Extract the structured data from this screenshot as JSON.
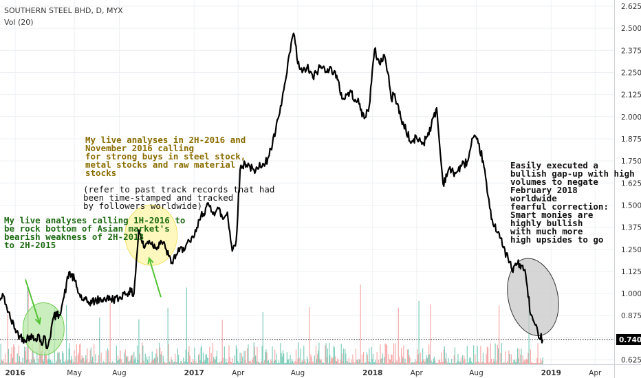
{
  "header": {
    "title": "SOUTHERN STEEL BHD, D, MYX",
    "volume_label": "Vol (20)"
  },
  "annotations": [
    {
      "name": "annotation-steel-buys",
      "style": "olive",
      "text": "My live analyses in 2H-2016 and\nNovember 2016 calling\nfor strong buys in steel stock,\nmetal stocks and raw material\nstocks"
    },
    {
      "name": "annotation-track-records",
      "style": "black",
      "text": "(refer to past track records that had\nbeen time-stamped and tracked\nby followers worldwide)"
    },
    {
      "name": "annotation-rock-bottom",
      "style": "green",
      "text": "My live analyses calling 1H-2016 to\nbe rock bottom of Asian market's\nbearish weakness of 2H-2013\nto 2H-2015"
    },
    {
      "name": "annotation-gap-up",
      "style": "black bold",
      "text": "Easily executed a\nbullish gap-up with high\nvolumes to negate\nFebruary 2018\nworldwide\nfearful correction:\nSmart monies are\nhighly bullish\nwith much more\nhigh upsides to go"
    }
  ],
  "chart_data": {
    "type": "line",
    "symbol": "SOUTHERN STEEL BHD",
    "interval": "D",
    "exchange": "MYX",
    "x_ticks": [
      "2016",
      "May",
      "Aug",
      "2017",
      "Apr",
      "Aug",
      "2018",
      "Apr",
      "Aug",
      "2019",
      "Apr"
    ],
    "x_tick_dates": [
      "2016-01-01",
      "2016-05-01",
      "2016-08-01",
      "2017-01-01",
      "2017-04-01",
      "2017-08-01",
      "2018-01-01",
      "2018-04-01",
      "2018-08-01",
      "2019-01-01",
      "2019-04-01"
    ],
    "y_ticks": [
      "0.625",
      "0.750",
      "0.875",
      "1.000",
      "1.125",
      "1.250",
      "1.375",
      "1.500",
      "1.625",
      "1.750",
      "1.875",
      "2.000",
      "2.125",
      "2.250",
      "2.375",
      "2.500",
      "2.625"
    ],
    "ylim": [
      0.6,
      2.66
    ],
    "last_price": "0.740",
    "colors": {
      "price": "#000000",
      "vol_up": "#7fcdbb",
      "vol_down": "#f5a9a9",
      "last_price_bg": "#000000"
    },
    "series": [
      {
        "values_type": "close",
        "points": [
          [
            "2015-12-01",
            0.96
          ],
          [
            "2015-12-08",
            0.99
          ],
          [
            "2015-12-15",
            0.92
          ],
          [
            "2015-12-22",
            0.86
          ],
          [
            "2016-01-01",
            0.8
          ],
          [
            "2016-01-10",
            0.76
          ],
          [
            "2016-01-20",
            0.74
          ],
          [
            "2016-01-31",
            0.76
          ],
          [
            "2016-02-10",
            0.74
          ],
          [
            "2016-02-18",
            0.77
          ],
          [
            "2016-02-24",
            0.71
          ],
          [
            "2016-03-01",
            0.76
          ],
          [
            "2016-03-05",
            0.69
          ],
          [
            "2016-03-10",
            0.73
          ],
          [
            "2016-03-20",
            0.87
          ],
          [
            "2016-03-31",
            0.88
          ],
          [
            "2016-04-10",
            0.98
          ],
          [
            "2016-04-20",
            1.12
          ],
          [
            "2016-05-01",
            1.08
          ],
          [
            "2016-05-10",
            1.0
          ],
          [
            "2016-05-20",
            0.96
          ],
          [
            "2016-06-01",
            0.95
          ],
          [
            "2016-06-15",
            0.96
          ],
          [
            "2016-06-30",
            0.97
          ],
          [
            "2016-07-15",
            0.97
          ],
          [
            "2016-07-31",
            0.97
          ],
          [
            "2016-08-10",
            1.0
          ],
          [
            "2016-08-20",
            1.01
          ],
          [
            "2016-08-31",
            1.0
          ],
          [
            "2016-09-05",
            1.19
          ],
          [
            "2016-09-10",
            1.36
          ],
          [
            "2016-09-20",
            1.26
          ],
          [
            "2016-10-01",
            1.3
          ],
          [
            "2016-10-15",
            1.26
          ],
          [
            "2016-10-25",
            1.3
          ],
          [
            "2016-11-05",
            1.25
          ],
          [
            "2016-11-15",
            1.17
          ],
          [
            "2016-11-25",
            1.22
          ],
          [
            "2016-12-10",
            1.26
          ],
          [
            "2016-12-25",
            1.29
          ],
          [
            "2017-01-05",
            1.35
          ],
          [
            "2017-01-15",
            1.44
          ],
          [
            "2017-01-31",
            1.5
          ],
          [
            "2017-02-10",
            1.46
          ],
          [
            "2017-02-20",
            1.48
          ],
          [
            "2017-03-01",
            1.42
          ],
          [
            "2017-03-10",
            1.46
          ],
          [
            "2017-03-20",
            1.24
          ],
          [
            "2017-03-28",
            1.3
          ],
          [
            "2017-04-05",
            1.7
          ],
          [
            "2017-04-15",
            1.74
          ],
          [
            "2017-04-25",
            1.72
          ],
          [
            "2017-05-05",
            1.68
          ],
          [
            "2017-05-15",
            1.74
          ],
          [
            "2017-05-25",
            1.72
          ],
          [
            "2017-06-10",
            1.84
          ],
          [
            "2017-06-25",
            2.02
          ],
          [
            "2017-07-10",
            2.25
          ],
          [
            "2017-07-20",
            2.44
          ],
          [
            "2017-07-25",
            2.46
          ],
          [
            "2017-08-01",
            2.3
          ],
          [
            "2017-08-10",
            2.25
          ],
          [
            "2017-08-20",
            2.28
          ],
          [
            "2017-09-01",
            2.22
          ],
          [
            "2017-09-15",
            2.28
          ],
          [
            "2017-10-01",
            2.27
          ],
          [
            "2017-10-15",
            2.26
          ],
          [
            "2017-11-01",
            2.1
          ],
          [
            "2017-11-15",
            2.14
          ],
          [
            "2017-12-01",
            2.09
          ],
          [
            "2017-12-15",
            1.99
          ],
          [
            "2017-12-25",
            2.06
          ],
          [
            "2018-01-05",
            2.38
          ],
          [
            "2018-01-15",
            2.3
          ],
          [
            "2018-01-25",
            2.35
          ],
          [
            "2018-02-01",
            2.25
          ],
          [
            "2018-02-08",
            2.1
          ],
          [
            "2018-02-15",
            2.13
          ],
          [
            "2018-03-01",
            1.98
          ],
          [
            "2018-03-10",
            1.93
          ],
          [
            "2018-03-20",
            1.85
          ],
          [
            "2018-04-01",
            1.88
          ],
          [
            "2018-04-15",
            1.85
          ],
          [
            "2018-05-01",
            1.95
          ],
          [
            "2018-05-12",
            2.05
          ],
          [
            "2018-05-18",
            1.84
          ],
          [
            "2018-05-25",
            1.62
          ],
          [
            "2018-06-05",
            1.7
          ],
          [
            "2018-06-20",
            1.68
          ],
          [
            "2018-07-01",
            1.72
          ],
          [
            "2018-07-15",
            1.75
          ],
          [
            "2018-07-25",
            1.88
          ],
          [
            "2018-08-05",
            1.85
          ],
          [
            "2018-08-15",
            1.75
          ],
          [
            "2018-08-25",
            1.55
          ],
          [
            "2018-09-01",
            1.42
          ],
          [
            "2018-09-15",
            1.35
          ],
          [
            "2018-09-25",
            1.26
          ],
          [
            "2018-10-05",
            1.2
          ],
          [
            "2018-10-15",
            1.12
          ],
          [
            "2018-10-20",
            1.17
          ],
          [
            "2018-11-01",
            1.16
          ],
          [
            "2018-11-10",
            1.11
          ],
          [
            "2018-11-20",
            0.88
          ],
          [
            "2018-11-25",
            0.85
          ],
          [
            "2018-12-05",
            0.78
          ],
          [
            "2018-12-15",
            0.74
          ]
        ]
      }
    ],
    "annotation_marks": [
      {
        "shape": "ellipse",
        "fill": "#b8e8a8",
        "stroke": "#6fcf50",
        "center": [
          "2016-02-28",
          0.8
        ],
        "note": "green circle at early 2016 bottom"
      },
      {
        "shape": "ellipse",
        "fill": "#fff5a8",
        "stroke": "#f0e060",
        "center": [
          "2016-10-05",
          1.33
        ],
        "note": "yellow circle at late 2016"
      },
      {
        "shape": "ellipse",
        "fill": "#c8c8c8",
        "stroke": "#333333",
        "center": [
          "2018-11-25",
          0.98
        ],
        "note": "gray circle at late 2018"
      },
      {
        "shape": "arrow",
        "color": "#52c232",
        "from": [
          "2016-01-22",
          1.08
        ],
        "to": [
          "2016-02-20",
          0.83
        ]
      },
      {
        "shape": "arrow",
        "color": "#52c232",
        "from": [
          "2016-10-25",
          0.98
        ],
        "to": [
          "2016-10-01",
          1.2
        ]
      }
    ],
    "volume_note": "Volume bars Vol (20), scale unlabeled"
  }
}
